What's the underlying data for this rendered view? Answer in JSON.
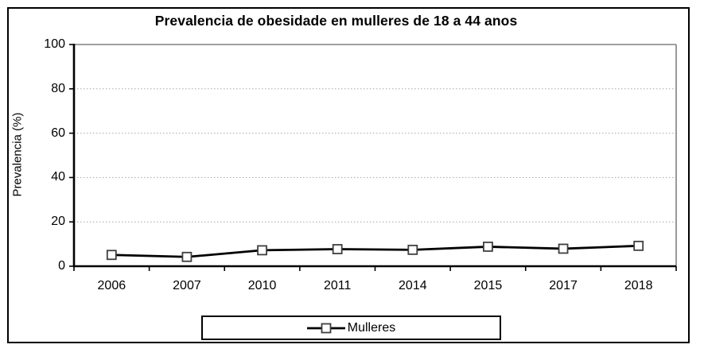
{
  "title": "Prevalencia de obesidade en mulleres de 18 a 44 anos",
  "chart_data": {
    "type": "line",
    "title": "Prevalencia de obesidade en mulleres de 18 a 44 anos",
    "xlabel": "",
    "ylabel": "Prevalencia (%)",
    "categories": [
      "2006",
      "2007",
      "2010",
      "2011",
      "2014",
      "2015",
      "2017",
      "2018"
    ],
    "series": [
      {
        "name": "Mulleres",
        "values": [
          5.1,
          4.2,
          7.2,
          7.7,
          7.4,
          8.8,
          7.9,
          9.2
        ]
      }
    ],
    "ylim": [
      0,
      100
    ],
    "yticks": [
      0,
      20,
      40,
      60,
      80,
      100
    ],
    "grid": "horizontal dotted lines at 20/40/60/80",
    "legend_position": "bottom-center boxed",
    "marker": "open-square",
    "colors": {
      "line": "#000000",
      "marker_fill": "#ffffff",
      "marker_border": "#3f3f3f",
      "axis": "#000000",
      "plot_border": "#808080",
      "grid": "#a6a6a6",
      "text": "#000000",
      "background": "#ffffff"
    }
  },
  "legend": {
    "items": [
      {
        "label": "Mulleres",
        "symbol": "line-with-open-square-marker"
      }
    ]
  }
}
